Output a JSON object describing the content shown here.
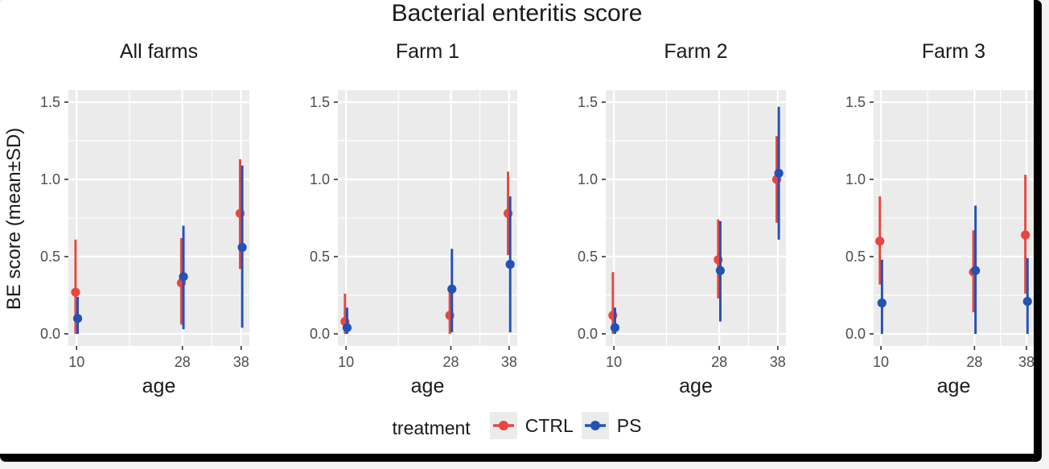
{
  "chart_data": {
    "type": "pointrange",
    "title": "Bacterial enteritis score",
    "ylabel": "BE score (mean±SD)",
    "xlabel": "age",
    "x_ticks": [
      10,
      28,
      38
    ],
    "x_minor": [
      19,
      33
    ],
    "y_ticks": [
      0.0,
      0.5,
      1.0,
      1.5
    ],
    "y_minor": [
      0.25,
      0.75,
      1.25
    ],
    "xlim": [
      8.6,
      39.4
    ],
    "ylim": [
      -0.078,
      1.578
    ],
    "grid": "on",
    "panel_bg": "#ebebeb",
    "grid_color": "#ffffff",
    "tick_color": "#333333",
    "legend": {
      "title": "treatment",
      "position": "bottom",
      "entries": [
        {
          "label": "CTRL",
          "color": "#e8473f"
        },
        {
          "label": "PS",
          "color": "#2352b5"
        }
      ]
    },
    "facets": [
      {
        "label": "All farms",
        "series": [
          {
            "name": "CTRL",
            "color": "#e8473f",
            "points": [
              {
                "x": 10,
                "mean": 0.27,
                "lo": 0.0,
                "hi": 0.61
              },
              {
                "x": 28,
                "mean": 0.33,
                "lo": 0.06,
                "hi": 0.62
              },
              {
                "x": 38,
                "mean": 0.78,
                "lo": 0.42,
                "hi": 1.13
              }
            ]
          },
          {
            "name": "PS",
            "color": "#2352b5",
            "points": [
              {
                "x": 10,
                "mean": 0.1,
                "lo": 0.0,
                "hi": 0.24
              },
              {
                "x": 28,
                "mean": 0.37,
                "lo": 0.03,
                "hi": 0.7
              },
              {
                "x": 38,
                "mean": 0.56,
                "lo": 0.04,
                "hi": 1.09
              }
            ]
          }
        ]
      },
      {
        "label": "Farm 1",
        "series": [
          {
            "name": "CTRL",
            "color": "#e8473f",
            "points": [
              {
                "x": 10,
                "mean": 0.08,
                "lo": 0.0,
                "hi": 0.26
              },
              {
                "x": 28,
                "mean": 0.12,
                "lo": 0.0,
                "hi": 0.3
              },
              {
                "x": 38,
                "mean": 0.78,
                "lo": 0.51,
                "hi": 1.05
              }
            ]
          },
          {
            "name": "PS",
            "color": "#2352b5",
            "points": [
              {
                "x": 10,
                "mean": 0.04,
                "lo": 0.0,
                "hi": 0.17
              },
              {
                "x": 28,
                "mean": 0.29,
                "lo": 0.01,
                "hi": 0.55
              },
              {
                "x": 38,
                "mean": 0.45,
                "lo": 0.01,
                "hi": 0.89
              }
            ]
          }
        ]
      },
      {
        "label": "Farm 2",
        "series": [
          {
            "name": "CTRL",
            "color": "#e8473f",
            "points": [
              {
                "x": 10,
                "mean": 0.12,
                "lo": 0.0,
                "hi": 0.4
              },
              {
                "x": 28,
                "mean": 0.48,
                "lo": 0.23,
                "hi": 0.74
              },
              {
                "x": 38,
                "mean": 1.0,
                "lo": 0.72,
                "hi": 1.28
              }
            ]
          },
          {
            "name": "PS",
            "color": "#2352b5",
            "points": [
              {
                "x": 10,
                "mean": 0.04,
                "lo": 0.0,
                "hi": 0.17
              },
              {
                "x": 28,
                "mean": 0.41,
                "lo": 0.08,
                "hi": 0.73
              },
              {
                "x": 38,
                "mean": 1.04,
                "lo": 0.61,
                "hi": 1.47
              }
            ]
          }
        ]
      },
      {
        "label": "Farm 3",
        "series": [
          {
            "name": "CTRL",
            "color": "#e8473f",
            "points": [
              {
                "x": 10,
                "mean": 0.6,
                "lo": 0.32,
                "hi": 0.89
              },
              {
                "x": 28,
                "mean": 0.4,
                "lo": 0.14,
                "hi": 0.67
              },
              {
                "x": 38,
                "mean": 0.64,
                "lo": 0.26,
                "hi": 1.03
              }
            ]
          },
          {
            "name": "PS",
            "color": "#2352b5",
            "points": [
              {
                "x": 10,
                "mean": 0.2,
                "lo": 0.0,
                "hi": 0.48
              },
              {
                "x": 28,
                "mean": 0.41,
                "lo": 0.0,
                "hi": 0.83
              },
              {
                "x": 38,
                "mean": 0.21,
                "lo": 0.0,
                "hi": 0.49
              }
            ]
          }
        ]
      }
    ]
  }
}
